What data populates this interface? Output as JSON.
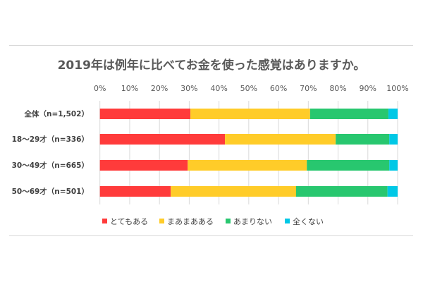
{
  "chart_data": {
    "type": "bar",
    "orientation": "horizontal-stacked-100",
    "title": "2019年は例年に比べてお金を使った感覚はありますか。",
    "categories": [
      "全体（n=1,502）",
      "18～29才（n=336）",
      "30～49才（n=665）",
      "50～69才（n=501）"
    ],
    "xticks": [
      "0%",
      "10%",
      "20%",
      "30%",
      "40%",
      "50%",
      "60%",
      "70%",
      "80%",
      "90%",
      "100%"
    ],
    "xlim": [
      0,
      100
    ],
    "grid": true,
    "legend_position": "bottom",
    "series": [
      {
        "name": "とてもある",
        "color": "#ff3b3b",
        "values": [
          30.4,
          42.0,
          29.5,
          23.8
        ]
      },
      {
        "name": "まあまあある",
        "color": "#ffcc29",
        "values": [
          40.2,
          37.2,
          40.0,
          42.1
        ]
      },
      {
        "name": "あまりない",
        "color": "#28c76f",
        "values": [
          26.3,
          18.0,
          27.7,
          30.7
        ]
      },
      {
        "name": "全くない",
        "color": "#00c8e6",
        "values": [
          3.1,
          2.8,
          2.8,
          3.4
        ]
      }
    ]
  }
}
